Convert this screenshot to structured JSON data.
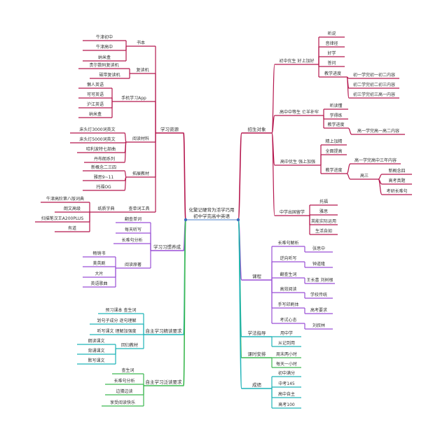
{
  "center": {
    "title_line1": "化繁记硬背为活学巧用",
    "title_line2": "初中学完高中英语"
  },
  "colors": {
    "resources": "#b5174e",
    "habits": "#9a4fd6",
    "intensive": "#1fb3b8",
    "extensive": "#3cb850",
    "center": "#4a7fc8"
  },
  "left": [
    {
      "label": "学习资源",
      "color": "resources",
      "children": [
        {
          "label": "书本",
          "children": [
            {
              "label": "牛津初中"
            },
            {
              "label": "牛津高中"
            },
            {
              "label": "纳米盒"
            }
          ]
        },
        {
          "label": "复读机",
          "children": [
            {
              "label": "贵尔数码复读机"
            },
            {
              "label": "磁带复读机"
            }
          ]
        },
        {
          "label": "手机学习App",
          "children": [
            {
              "label": "懒人英语"
            },
            {
              "label": "可可英语"
            },
            {
              "label": "沪江英语"
            },
            {
              "label": "纳米盒"
            }
          ]
        },
        {
          "label": "阅读材料",
          "children": [
            {
              "label": "床头灯3000词英文"
            },
            {
              "label": "床头灯5000词英文"
            },
            {
              "label": "哈利波特七部曲"
            },
            {
              "label": "丹布朗系列"
            }
          ]
        },
        {
          "label": "拓展教材",
          "children": [
            {
              "label": "新概念二三四"
            },
            {
              "label": "雅思9~11"
            },
            {
              "label": "托福OG"
            }
          ]
        },
        {
          "label": "查单词工具",
          "children": [
            {
              "label": "纸质字典",
              "children": [
                {
                  "label": "牛津高阶第八版词典"
                },
                {
                  "label": "朗文高级"
                },
                {
                  "label": "扫描笔汉王A200PLUS"
                },
                {
                  "label": "有道"
                }
              ]
            }
          ]
        }
      ]
    },
    {
      "label": "学习习惯养成",
      "color": "habits",
      "children": [
        {
          "label": "翻查单词"
        },
        {
          "label": "每天听写"
        },
        {
          "label": "长难句分析"
        },
        {
          "label": "阅读原著",
          "children": [
            {
              "label": "畅销书"
            },
            {
              "label": "美英剧"
            },
            {
              "label": "大片"
            },
            {
              "label": "英语歌曲"
            }
          ]
        }
      ]
    },
    {
      "label": "自主学习精读要求",
      "color": "intensive",
      "children": [
        {
          "label": "预习课本 查生词"
        },
        {
          "label": "划句子成分 逐句理解"
        },
        {
          "label": "听写课文 理解加强度"
        },
        {
          "label": "回归教材",
          "children": [
            {
              "label": "朗读课文"
            },
            {
              "label": "背诵课文"
            },
            {
              "label": "默写课文"
            }
          ]
        }
      ]
    },
    {
      "label": "自主学习泛读要求",
      "color": "extensive",
      "children": [
        {
          "label": "查生词"
        },
        {
          "label": "长难句分析"
        },
        {
          "label": "边猜边读"
        },
        {
          "label": "享受阅读快乐"
        }
      ]
    }
  ],
  "right": [
    {
      "label": "招生对象",
      "color": "resources",
      "children": [
        {
          "label": "初中优生 好上加好",
          "children": [
            {
              "label": "听说"
            },
            {
              "label": "音律径"
            },
            {
              "label": "好学"
            },
            {
              "label": "答问"
            },
            {
              "label": "教学进度",
              "children": [
                {
                  "label": "初一学完初一初二内容"
                },
                {
                  "label": "初二学完初二初三内容"
                },
                {
                  "label": "初三学完初三高一内容"
                }
              ]
            }
          ]
        },
        {
          "label": "高中中等生 亡羊补牢",
          "children": [
            {
              "label": "听读懂"
            },
            {
              "label": "学得练"
            },
            {
              "label": "教学进度",
              "children": [
                {
                  "label": "高一学完高一高二内容"
                }
              ]
            }
          ]
        },
        {
          "label": "高中优生 强上加强",
          "children": [
            {
              "label": "精上加精"
            },
            {
              "label": "全面提高"
            },
            {
              "label": "教学进度",
              "children": [
                {
                  "label": "高一学完高中三年内容"
                },
                {
                  "label": "高三",
                  "children": [
                    {
                      "label": "新概念四"
                    },
                    {
                      "label": "高考真题"
                    },
                    {
                      "label": "考研长难句"
                    }
                  ]
                }
              ]
            }
          ]
        },
        {
          "label": "中学出国留学",
          "children": [
            {
              "label": "托福"
            },
            {
              "label": "雅思"
            },
            {
              "label": "英能实际运用"
            },
            {
              "label": "生活自如"
            }
          ]
        }
      ]
    },
    {
      "label": "课程",
      "color": "habits",
      "children": [
        {
          "label": "长难句解析",
          "children": [
            {
              "label": "张思中"
            }
          ]
        },
        {
          "label": "逆向听写",
          "children": [
            {
              "label": "钟道隆"
            }
          ]
        },
        {
          "label": "翻查生词",
          "children": [
            {
              "label": "王长喜 刘树根"
            }
          ]
        },
        {
          "label": "高效阅读",
          "children": [
            {
              "label": "学校传统"
            }
          ]
        },
        {
          "label": "手写印刷体",
          "children": [
            {
              "label": "高考要求"
            }
          ]
        },
        {
          "label": "考试心态",
          "children": [
            {
              "label": "刘叔林"
            }
          ]
        }
      ]
    },
    {
      "label": "学法指导",
      "color": "intensive",
      "children": [
        {
          "label": "用中学"
        },
        {
          "label": "从记到用"
        }
      ]
    },
    {
      "label": "课时安排",
      "color": "extensive",
      "children": [
        {
          "label": "周末两小时"
        },
        {
          "label": "每天一小时"
        }
      ]
    },
    {
      "label": "成绩",
      "color": "intensive",
      "children": [
        {
          "label": "初中满分"
        },
        {
          "label": "中考145"
        },
        {
          "label": "高中自主"
        },
        {
          "label": "高考100"
        }
      ]
    }
  ]
}
